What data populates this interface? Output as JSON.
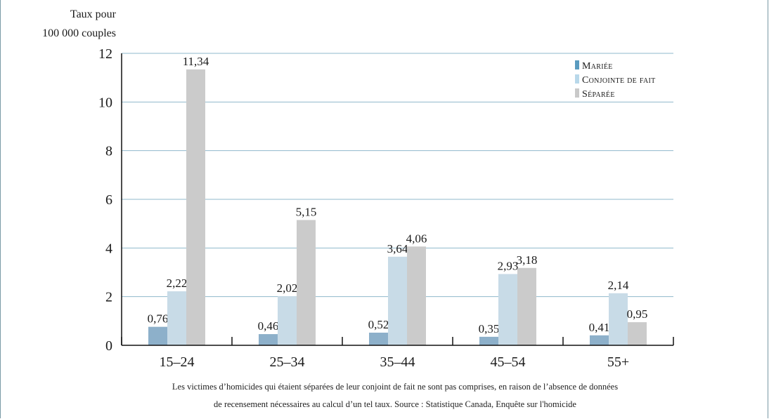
{
  "chart_data": {
    "type": "bar",
    "ylabel_lines": [
      "Taux pour",
      "100 000 couples"
    ],
    "categories": [
      "15–24",
      "25–34",
      "35–44",
      "45–54",
      "55+"
    ],
    "yticks": [
      "0",
      "2",
      "4",
      "6",
      "8",
      "10",
      "12"
    ],
    "ylim": [
      0,
      12
    ],
    "grid": true,
    "legend_position": "top-right",
    "series": [
      {
        "name": "Mariée",
        "color": "#8db0ca",
        "values": [
          0.76,
          0.46,
          0.52,
          0.35,
          0.41
        ],
        "labels": [
          "0,76",
          "0,46",
          "0,52",
          "0,35",
          "0,41"
        ]
      },
      {
        "name": "Conjointe de fait",
        "color": "#c8dbe7",
        "values": [
          2.22,
          2.02,
          3.64,
          2.93,
          2.14
        ],
        "labels": [
          "2,22",
          "2,02",
          "3,64",
          "2,93",
          "2,14"
        ]
      },
      {
        "name": "Séparée",
        "color": "#cbcbcb",
        "values": [
          11.34,
          5.15,
          4.06,
          3.18,
          0.95
        ],
        "labels": [
          "11,34",
          "5,15",
          "4,06",
          "3,18",
          "0,95"
        ]
      }
    ],
    "legend_colors": [
      "#5a9bbf",
      "#b8d8ea",
      "#c9c9c9"
    ],
    "grid_color": "#8fb8cc",
    "axis_color": "#111111"
  },
  "footnote": {
    "line1": "Les victimes d’homicides qui étaient séparées de leur conjoint de fait ne sont pas comprises, en raison de l’absence de données",
    "line2": "de recensement nécessaires au calcul d’un tel taux.   Source : Statistique Canada, Enquête sur l'homicide"
  }
}
